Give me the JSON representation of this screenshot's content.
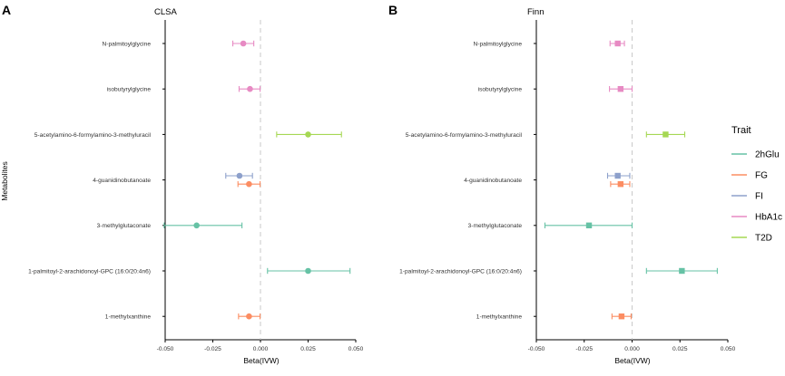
{
  "figure": {
    "y_axis_label": "Metabolites",
    "legend": {
      "title": "Trait",
      "items": [
        {
          "label": "2hGlu",
          "color": "#66c2a5"
        },
        {
          "label": "FG",
          "color": "#fc8d62"
        },
        {
          "label": "FI",
          "color": "#8da0cb"
        },
        {
          "label": "HbA1c",
          "color": "#e78ac3"
        },
        {
          "label": "T2D",
          "color": "#a6d854"
        }
      ]
    }
  },
  "chart_data": [
    {
      "type": "scatter",
      "subtype": "forest-plot",
      "panel_letter": "A",
      "title": "CLSA",
      "xlabel": "Beta(IVW)",
      "ylabel": "Metabolites",
      "xlim": [
        -0.05,
        0.05
      ],
      "xticks": [
        -0.05,
        -0.025,
        0.0,
        0.025,
        0.05
      ],
      "xtick_labels": [
        "-0.050",
        "-0.025",
        "0.000",
        "0.025",
        "0.050"
      ],
      "reference_line": 0,
      "marker": "circle",
      "categories": [
        "N-palmitoylglycine",
        "isobutyrylglycine",
        "5-acetylamino-6-formylamino-3-methyluracil",
        "4-guanidinobutanoate",
        "3-methylglutaconate",
        "1-palmitoyl-2-arachidonoyl-GPC (16:0/20:4n6)",
        "1-methylxanthine"
      ],
      "points": [
        {
          "metabolite": "N-palmitoylglycine",
          "trait": "HbA1c",
          "beta": -0.009,
          "lo": -0.0145,
          "hi": -0.0035,
          "pos": 0
        },
        {
          "metabolite": "isobutyrylglycine",
          "trait": "HbA1c",
          "beta": -0.0055,
          "lo": -0.0112,
          "hi": -0.0002,
          "pos": 0
        },
        {
          "metabolite": "5-acetylamino-6-formylamino-3-methyluracil",
          "trait": "T2D",
          "beta": 0.025,
          "lo": 0.0085,
          "hi": 0.0425,
          "pos": 0
        },
        {
          "metabolite": "4-guanidinobutanoate",
          "trait": "FI",
          "beta": -0.011,
          "lo": -0.0182,
          "hi": -0.0042,
          "pos": -1
        },
        {
          "metabolite": "4-guanidinobutanoate",
          "trait": "FG",
          "beta": -0.006,
          "lo": -0.0118,
          "hi": -0.0002,
          "pos": 1
        },
        {
          "metabolite": "3-methylglutaconate",
          "trait": "2hGlu",
          "beta": -0.0335,
          "lo": -0.0505,
          "hi": -0.0097,
          "pos": 0
        },
        {
          "metabolite": "1-palmitoyl-2-arachidonoyl-GPC (16:0/20:4n6)",
          "trait": "2hGlu",
          "beta": 0.025,
          "lo": 0.0037,
          "hi": 0.047,
          "pos": 0
        },
        {
          "metabolite": "1-methylxanthine",
          "trait": "FG",
          "beta": -0.006,
          "lo": -0.0115,
          "hi": -0.0002,
          "pos": 0
        }
      ]
    },
    {
      "type": "scatter",
      "subtype": "forest-plot",
      "panel_letter": "B",
      "title": "Finn",
      "xlabel": "Beta(IVW)",
      "ylabel": "",
      "xlim": [
        -0.05,
        0.05
      ],
      "xticks": [
        -0.05,
        -0.025,
        0.0,
        0.025,
        0.05
      ],
      "xtick_labels": [
        "-0.050",
        "-0.025",
        "0.000",
        "0.025",
        "0.050"
      ],
      "reference_line": 0,
      "marker": "square",
      "categories": [
        "N-palmitoylglycine",
        "isobutyrylglycine",
        "5-acetylamino-6-formylamino-3-methyluracil",
        "4-guanidinobutanoate",
        "3-methylglutaconate",
        "1-palmitoyl-2-arachidonoyl-GPC (16:0/20:4n6)",
        "1-methylxanthine"
      ],
      "points": [
        {
          "metabolite": "N-palmitoylglycine",
          "trait": "HbA1c",
          "beta": -0.0075,
          "lo": -0.0115,
          "hi": -0.004,
          "pos": 0
        },
        {
          "metabolite": "isobutyrylglycine",
          "trait": "HbA1c",
          "beta": -0.006,
          "lo": -0.0118,
          "hi": 0.0,
          "pos": 0
        },
        {
          "metabolite": "5-acetylamino-6-formylamino-3-methyluracil",
          "trait": "T2D",
          "beta": 0.0175,
          "lo": 0.0075,
          "hi": 0.0275,
          "pos": 0
        },
        {
          "metabolite": "4-guanidinobutanoate",
          "trait": "FI",
          "beta": -0.0075,
          "lo": -0.0128,
          "hi": -0.0012,
          "pos": -1
        },
        {
          "metabolite": "4-guanidinobutanoate",
          "trait": "FG",
          "beta": -0.006,
          "lo": -0.0112,
          "hi": -0.0012,
          "pos": 1
        },
        {
          "metabolite": "3-methylglutaconate",
          "trait": "2hGlu",
          "beta": -0.0225,
          "lo": -0.0455,
          "hi": 0.0,
          "pos": 0
        },
        {
          "metabolite": "1-palmitoyl-2-arachidonoyl-GPC (16:0/20:4n6)",
          "trait": "2hGlu",
          "beta": 0.026,
          "lo": 0.0075,
          "hi": 0.0445,
          "pos": 0
        },
        {
          "metabolite": "1-methylxanthine",
          "trait": "FG",
          "beta": -0.0055,
          "lo": -0.0105,
          "hi": -0.0005,
          "pos": 0
        }
      ]
    }
  ]
}
